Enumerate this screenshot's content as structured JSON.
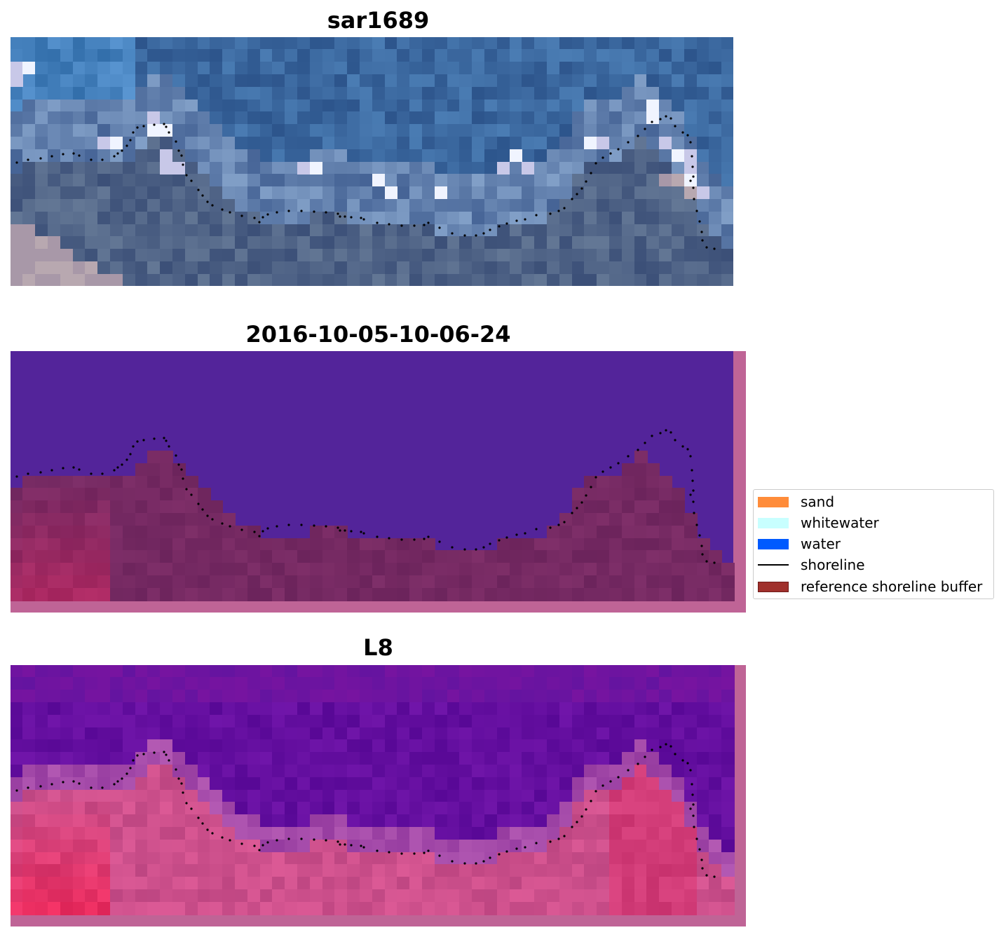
{
  "panels": [
    {
      "id": "rgb",
      "title": "sar1689"
    },
    {
      "id": "classified",
      "title": "2016-10-05-10-06-24"
    },
    {
      "id": "index",
      "title": "L8"
    }
  ],
  "legend": {
    "items": [
      {
        "label": "sand",
        "color": "#ff8c3a",
        "kind": "patch"
      },
      {
        "label": "whitewater",
        "color": "#c8ffff",
        "kind": "patch"
      },
      {
        "label": "water",
        "color": "#005aff",
        "kind": "patch"
      },
      {
        "label": "shoreline",
        "color": "#000000",
        "kind": "line"
      },
      {
        "label": "reference shoreline buffer",
        "color": "#a0302c",
        "border": "#6e1a18",
        "kind": "patch"
      }
    ]
  },
  "colors": {
    "water_class": "#53249a",
    "buffer_overlay": "#bf6496",
    "land_class": "#7a2a64",
    "index_water": "#5a0a9a",
    "index_land": "#c8287a"
  }
}
